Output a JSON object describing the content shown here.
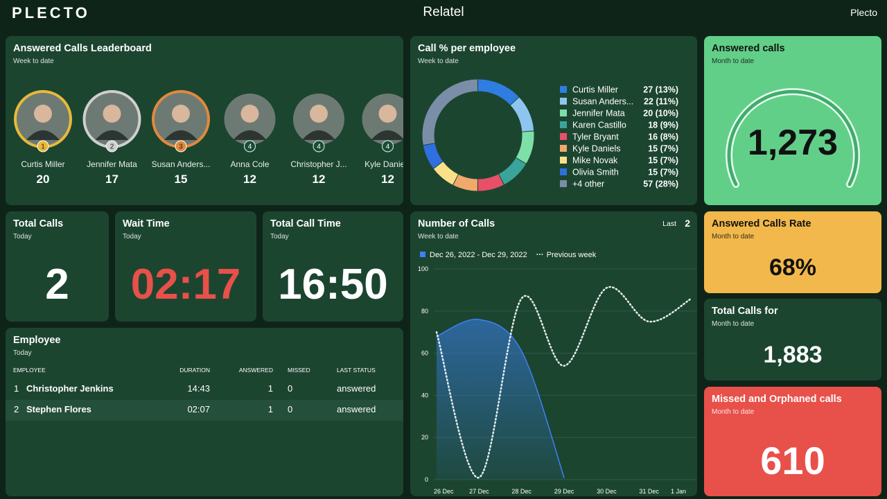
{
  "header": {
    "logo": "PLECTO",
    "title": "Relatel",
    "account": "Plecto"
  },
  "leaderboard": {
    "title": "Answered Calls Leaderboard",
    "subtitle": "Week to date",
    "entries": [
      {
        "rank": 1,
        "name": "Curtis Miller",
        "value": 20
      },
      {
        "rank": 2,
        "name": "Jennifer Mata",
        "value": 17
      },
      {
        "rank": 3,
        "name": "Susan Anders...",
        "value": 15
      },
      {
        "rank": 4,
        "name": "Anna Cole",
        "value": 12
      },
      {
        "rank": 4,
        "name": "Christopher J...",
        "value": 12
      },
      {
        "rank": 4,
        "name": "Kyle Daniels",
        "value": 12
      }
    ]
  },
  "call_share": {
    "type": "pie",
    "title": "Call % per employee",
    "subtitle": "Week to date",
    "categories": [
      "Curtis Miller",
      "Susan Anders...",
      "Jennifer Mata",
      "Karen Castillo",
      "Tyler Bryant",
      "Kyle Daniels",
      "Mike Novak",
      "Olivia Smith",
      "+4 other"
    ],
    "colors": [
      "#2f7de1",
      "#8ec5f0",
      "#7ee0a8",
      "#3aa39a",
      "#e8506a",
      "#f0a96a",
      "#fbe08a",
      "#2f6fe0",
      "#7a8ea8"
    ],
    "values": [
      27,
      22,
      20,
      18,
      16,
      15,
      15,
      15,
      57
    ],
    "value_labels": [
      "27 (13%)",
      "22 (11%)",
      "20 (10%)",
      "18 (9%)",
      "16 (8%)",
      "15 (7%)",
      "15 (7%)",
      "15 (7%)",
      "57 (28%)"
    ]
  },
  "answered_calls": {
    "title": "Answered calls",
    "subtitle": "Month to date",
    "value": "1,273"
  },
  "total_calls": {
    "title": "Total Calls",
    "subtitle": "Today",
    "value": 2
  },
  "wait_time": {
    "title": "Wait Time",
    "subtitle": "Today",
    "value": "02:17"
  },
  "total_call_time": {
    "title": "Total Call Time",
    "subtitle": "Today",
    "value": "16:50"
  },
  "number_of_calls": {
    "type": "line",
    "title": "Number of Calls",
    "subtitle": "Week to date",
    "period_label": "Last",
    "period_value": 2,
    "categories": [
      "26 Dec",
      "27 Dec",
      "28 Dec",
      "29 Dec",
      "30 Dec",
      "31 Dec",
      "1 Jan"
    ],
    "series": [
      {
        "name": "Dec 26, 2022 - Dec 29, 2022",
        "color": "#3b82f6",
        "values": [
          68,
          76,
          61,
          1,
          null,
          null,
          null
        ]
      },
      {
        "name": "Previous week",
        "color": "#e6eef0",
        "style": "dotted",
        "values": [
          70,
          1,
          86,
          54,
          91,
          75,
          86
        ]
      }
    ],
    "ylim": [
      0,
      100
    ],
    "yticks": [
      0,
      20,
      40,
      60,
      80,
      100
    ],
    "grid": true
  },
  "answered_calls_rate": {
    "title": "Answered Calls Rate",
    "subtitle": "Month to date",
    "value": "68%"
  },
  "total_calls_for": {
    "title": "Total Calls for",
    "subtitle": "Month to date",
    "value": "1,883"
  },
  "missed_calls": {
    "title": "Missed and Orphaned calls",
    "subtitle": "Month to date",
    "value": "610"
  },
  "employee_table": {
    "title": "Employee",
    "subtitle": "Today",
    "columns": [
      "EMPLOYEE",
      "DURATION",
      "ANSWERED",
      "MISSED",
      "LAST STATUS"
    ],
    "rows": [
      [
        1,
        "Christopher Jenkins",
        "14:43",
        1,
        0,
        "answered"
      ],
      [
        2,
        "Stephen Flores",
        "02:07",
        1,
        0,
        "answered"
      ]
    ]
  }
}
